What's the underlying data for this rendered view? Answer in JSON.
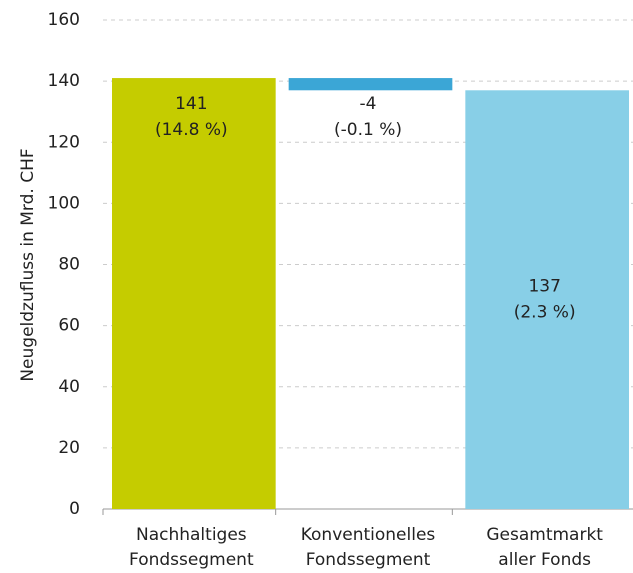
{
  "chart_data": {
    "type": "waterfall",
    "y_label": "Neugeldzufluss in Mrd. CHF",
    "categories": [
      [
        "Nachhaltiges",
        "Fondssegment"
      ],
      [
        "Konventionelles",
        "Fondssegment"
      ],
      [
        "Gesamtmarkt",
        "aller Fonds"
      ]
    ],
    "values": [
      141,
      -4,
      137
    ],
    "share_labels": [
      "(14.8 %)",
      "(-0.1 %)",
      "(2.3 %)"
    ],
    "is_total": [
      false,
      false,
      true
    ],
    "colors": [
      "#c5cc00",
      "#3ba6d6",
      "#88cfe7"
    ],
    "ylim": [
      0,
      160
    ],
    "yticks": [
      0,
      20,
      40,
      60,
      80,
      100,
      120,
      140,
      160
    ],
    "grid": true
  }
}
